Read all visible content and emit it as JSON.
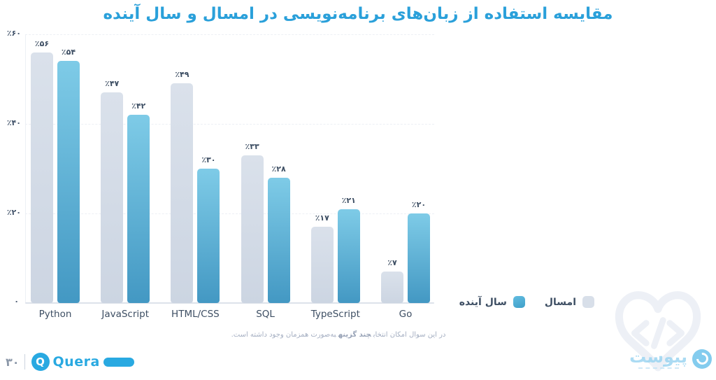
{
  "header": {
    "title": "مقایسه استفاده از زبان‌های برنامه‌نویسی در امسال و سال آینده"
  },
  "chart_data": {
    "type": "bar",
    "title": "مقایسه استفاده از زبان‌های برنامه‌نویسی در امسال و سال آینده",
    "categories": [
      "Python",
      "JavaScript",
      "HTML/CSS",
      "SQL",
      "TypeScript",
      "Go"
    ],
    "series": [
      {
        "name": "امسال",
        "key": "this-year",
        "values": [
          56,
          47,
          33,
          17,
          7,
          49
        ],
        "note": "values aligned to categories below",
        "values_by_category": [
          56,
          47,
          49,
          33,
          17,
          7
        ],
        "labels": [
          "٪۵۶",
          "٪۴۷",
          "٪۴۹",
          "٪۳۳",
          "٪۱۷",
          "٪۷"
        ],
        "color": "#d3dbe7"
      },
      {
        "name": "سال آینده",
        "key": "next-year",
        "values_by_category": [
          54,
          42,
          30,
          28,
          21,
          20
        ],
        "labels": [
          "٪۵۴",
          "٪۴۲",
          "٪۳۰",
          "٪۲۸",
          "٪۲۱",
          "٪۲۰"
        ],
        "color": "#4fa9cf"
      }
    ],
    "ylim": [
      0,
      60
    ],
    "yticks": {
      "values": [
        60,
        40,
        20,
        0
      ],
      "labels": [
        "٪۶۰",
        "٪۴۰",
        "٪۲۰",
        "۰"
      ]
    },
    "grid": true,
    "legend_position": "bottom-right"
  },
  "legend": {
    "items": [
      {
        "label": "سال آینده",
        "key": "next-year"
      },
      {
        "label": "امسال",
        "key": "this-year"
      }
    ]
  },
  "footnote": {
    "part1": "در این سوال امکان انتخاب",
    "bold": "چند گزینه",
    "part2": "به‌صورت همزمان وجود داشته است."
  },
  "footer": {
    "page_number": "۳۰",
    "brand": "Quera",
    "brand_initial": "Q"
  },
  "watermark": {
    "heart_icon": "code-heart-icon",
    "logo_text": "پیوست"
  },
  "colors": {
    "accent": "#29a9e1",
    "title": "#2aa0da",
    "text_dark": "#3d4e63",
    "bar_this_year": "#d3dbe7",
    "bar_next_year_top": "#7ecbe7",
    "bar_next_year_bottom": "#4398c3",
    "footnote": "#a5afc2"
  }
}
